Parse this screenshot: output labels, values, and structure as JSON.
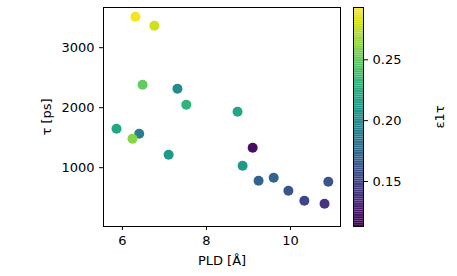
{
  "chart_data": {
    "type": "scatter",
    "x_label": "PLD [Å]",
    "y_label": "τ [ps]",
    "x": [
      6.31,
      6.76,
      6.48,
      7.31,
      7.52,
      8.74,
      5.86,
      6.4,
      6.24,
      7.1,
      9.1,
      8.86,
      9.24,
      9.6,
      9.95,
      10.33,
      10.9,
      10.81
    ],
    "y": [
      3517,
      3367,
      2383,
      2317,
      2050,
      1933,
      1650,
      1567,
      1483,
      1217,
      1333,
      1033,
      783,
      833,
      617,
      450,
      767,
      400
    ],
    "color_values": [
      0.29,
      0.28,
      0.25,
      0.2,
      0.23,
      0.22,
      0.22,
      0.19,
      0.26,
      0.21,
      0.12,
      0.21,
      0.17,
      0.17,
      0.16,
      0.15,
      0.16,
      0.14
    ],
    "xlim": [
      5.55,
      11.19
    ],
    "ylim": [
      20,
      3670
    ],
    "xticks": [
      6,
      8,
      10
    ],
    "yticks": [
      1000,
      2000,
      3000
    ],
    "colorbar": {
      "label": "ε1τ",
      "lim": [
        0.113,
        0.293
      ],
      "ticks": [
        0.15,
        {
          "value": 0.2,
          "label": "0.20"
        },
        0.25
      ]
    }
  }
}
